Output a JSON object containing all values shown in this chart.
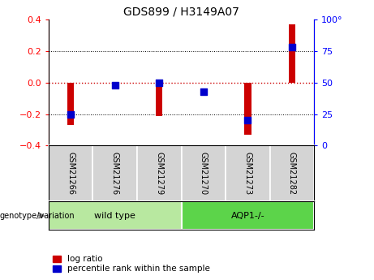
{
  "title": "GDS899 / H3149A07",
  "samples": [
    "GSM21266",
    "GSM21276",
    "GSM21279",
    "GSM21270",
    "GSM21273",
    "GSM21282"
  ],
  "log_ratio": [
    -0.27,
    0.0,
    -0.21,
    0.0,
    -0.33,
    0.37
  ],
  "percentile_rank": [
    25,
    48,
    50,
    43,
    20,
    78
  ],
  "groups": [
    {
      "label": "wild type",
      "indices": [
        0,
        1,
        2
      ],
      "color": "#b8e8a0"
    },
    {
      "label": "AQP1-/-",
      "indices": [
        3,
        4,
        5
      ],
      "color": "#5cd44a"
    }
  ],
  "genotype_label": "genotype/variation",
  "ylim_left": [
    -0.4,
    0.4
  ],
  "ylim_right": [
    0,
    100
  ],
  "yticks_left": [
    -0.4,
    -0.2,
    0,
    0.2,
    0.4
  ],
  "yticks_right": [
    0,
    25,
    50,
    75,
    100
  ],
  "bar_color": "#cc0000",
  "dot_color": "#0000cc",
  "hline_color": "#cc0000",
  "dotted_color": "#000000",
  "bar_width": 0.15,
  "dot_size": 30,
  "legend_items": [
    "log ratio",
    "percentile rank within the sample"
  ]
}
